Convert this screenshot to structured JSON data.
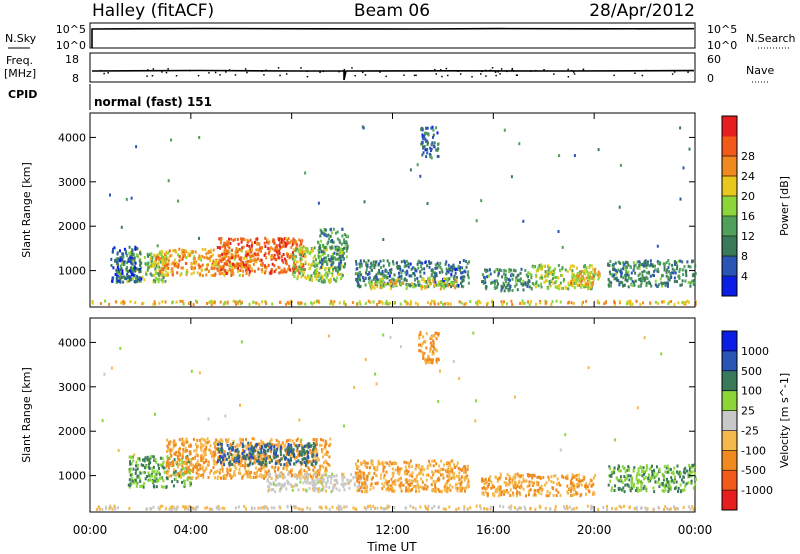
{
  "header": {
    "station": "Halley (fitACF)",
    "beam": "Beam 06",
    "date": "28/Apr/2012"
  },
  "nsky_panel": {
    "left_label": "N.Sky",
    "left_ticks": [
      "10^5",
      "10^0"
    ],
    "right_label": "N.Search",
    "right_ticks": [
      "10^5",
      "10^0"
    ]
  },
  "freq_panel": {
    "left_label_top": "Freq.",
    "left_label_unit": "[MHz]",
    "left_ticks": [
      "18",
      "8"
    ],
    "right_label": "Nave",
    "right_ticks": [
      "60",
      "0"
    ]
  },
  "cpid_panel": {
    "label": "CPID",
    "value": "normal (fast) 151"
  },
  "colors": {
    "power": [
      "#0a1ee6",
      "#2a55b5",
      "#3a7a5a",
      "#4ea05a",
      "#8cd63a",
      "#e8c81e",
      "#f08a1e",
      "#f25a1a",
      "#e61e1e"
    ],
    "velocity": [
      "#e61e1e",
      "#f25a1a",
      "#f08a1e",
      "#f5b84a",
      "#c8c8c8",
      "#8cd63a",
      "#3a7a5a",
      "#2a55b5",
      "#0a1ee6"
    ]
  },
  "chart_data": [
    {
      "type": "heatmap",
      "title": "Power",
      "xlabel": "Time UT",
      "ylabel": "Slant Range [km]",
      "x_ticks": [
        "00:00",
        "04:00",
        "08:00",
        "12:00",
        "16:00",
        "20:00",
        "00:00"
      ],
      "y_ticks": [
        "1000",
        "2000",
        "3000",
        "4000"
      ],
      "ylim": [
        180,
        4550
      ],
      "colorbar": {
        "label": "Power [dB]",
        "ticks": [
          "4",
          "8",
          "12",
          "16",
          "20",
          "24",
          "28"
        ],
        "range": [
          0,
          32
        ]
      },
      "regions": [
        {
          "t0": 1.0,
          "t1": 3.0,
          "r0": 700,
          "r1": 1400,
          "v": 14
        },
        {
          "t0": 2.5,
          "t1": 6.5,
          "r0": 850,
          "r1": 1450,
          "v": 22
        },
        {
          "t0": 5.0,
          "t1": 8.5,
          "r0": 900,
          "r1": 1700,
          "v": 26
        },
        {
          "t0": 8.0,
          "t1": 10.0,
          "r0": 700,
          "r1": 1500,
          "v": 16
        },
        {
          "t0": 9.0,
          "t1": 10.2,
          "r0": 1000,
          "r1": 1900,
          "v": 10
        },
        {
          "t0": 0.8,
          "t1": 2.0,
          "r0": 700,
          "r1": 1500,
          "v": 6
        },
        {
          "t0": 10.5,
          "t1": 15.0,
          "r0": 600,
          "r1": 1200,
          "v": 8
        },
        {
          "t0": 11.0,
          "t1": 14.5,
          "r0": 550,
          "r1": 800,
          "v": 18
        },
        {
          "t0": 13.1,
          "t1": 13.8,
          "r0": 3500,
          "r1": 4200,
          "v": 8
        },
        {
          "t0": 15.5,
          "t1": 17.5,
          "r0": 500,
          "r1": 1000,
          "v": 10
        },
        {
          "t0": 17.5,
          "t1": 20.0,
          "r0": 550,
          "r1": 1100,
          "v": 16
        },
        {
          "t0": 19.0,
          "t1": 20.2,
          "r0": 600,
          "r1": 1000,
          "v": 20
        },
        {
          "t0": 20.5,
          "t1": 24.0,
          "r0": 600,
          "r1": 1200,
          "v": 10
        },
        {
          "t0": 0.0,
          "t1": 24.0,
          "r0": 200,
          "r1": 280,
          "v": 20
        }
      ]
    },
    {
      "type": "heatmap",
      "title": "Velocity",
      "xlabel": "Time UT",
      "ylabel": "Slant Range [km]",
      "x_ticks": [
        "00:00",
        "04:00",
        "08:00",
        "12:00",
        "16:00",
        "20:00",
        "00:00"
      ],
      "y_ticks": [
        "1000",
        "2000",
        "3000",
        "4000"
      ],
      "ylim": [
        180,
        4550
      ],
      "colorbar": {
        "label": "Velocity [m s^-1]",
        "ticks": [
          "-1000",
          "-500",
          "-100",
          "-25",
          "25",
          "100",
          "500",
          "1000"
        ]
      },
      "regions": [
        {
          "t0": 1.5,
          "t1": 4.0,
          "r0": 700,
          "r1": 1400,
          "v": 100
        },
        {
          "t0": 3.0,
          "t1": 9.5,
          "r0": 900,
          "r1": 1800,
          "v": -100
        },
        {
          "t0": 5.0,
          "t1": 9.0,
          "r0": 1200,
          "r1": 1700,
          "v": 500
        },
        {
          "t0": 7.0,
          "t1": 11.0,
          "r0": 600,
          "r1": 1000,
          "v": 0
        },
        {
          "t0": 10.5,
          "t1": 15.0,
          "r0": 600,
          "r1": 1300,
          "v": -100
        },
        {
          "t0": 13.0,
          "t1": 13.8,
          "r0": 3500,
          "r1": 4200,
          "v": -100
        },
        {
          "t0": 15.5,
          "t1": 20.0,
          "r0": 500,
          "r1": 1000,
          "v": -100
        },
        {
          "t0": 20.5,
          "t1": 24.0,
          "r0": 600,
          "r1": 1200,
          "v": 100
        },
        {
          "t0": 0.0,
          "t1": 24.0,
          "r0": 200,
          "r1": 280,
          "v": -25
        }
      ]
    }
  ]
}
